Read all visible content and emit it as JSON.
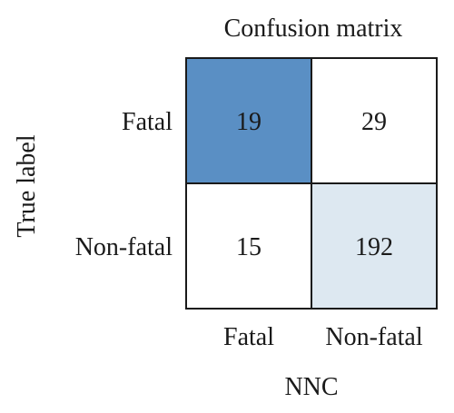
{
  "chart_data": {
    "type": "heatmap",
    "title": "Confusion matrix",
    "xlabel": "NNC",
    "ylabel": "True label",
    "x_categories": [
      "Fatal",
      "Non-fatal"
    ],
    "y_categories": [
      "Fatal",
      "Non-fatal"
    ],
    "values": [
      [
        19,
        29
      ],
      [
        15,
        192
      ]
    ],
    "cell_colors": [
      [
        "#5a8fc4",
        "#ffffff"
      ],
      [
        "#ffffff",
        "#dde8f1"
      ]
    ],
    "border_color": "#1a1a1a"
  }
}
